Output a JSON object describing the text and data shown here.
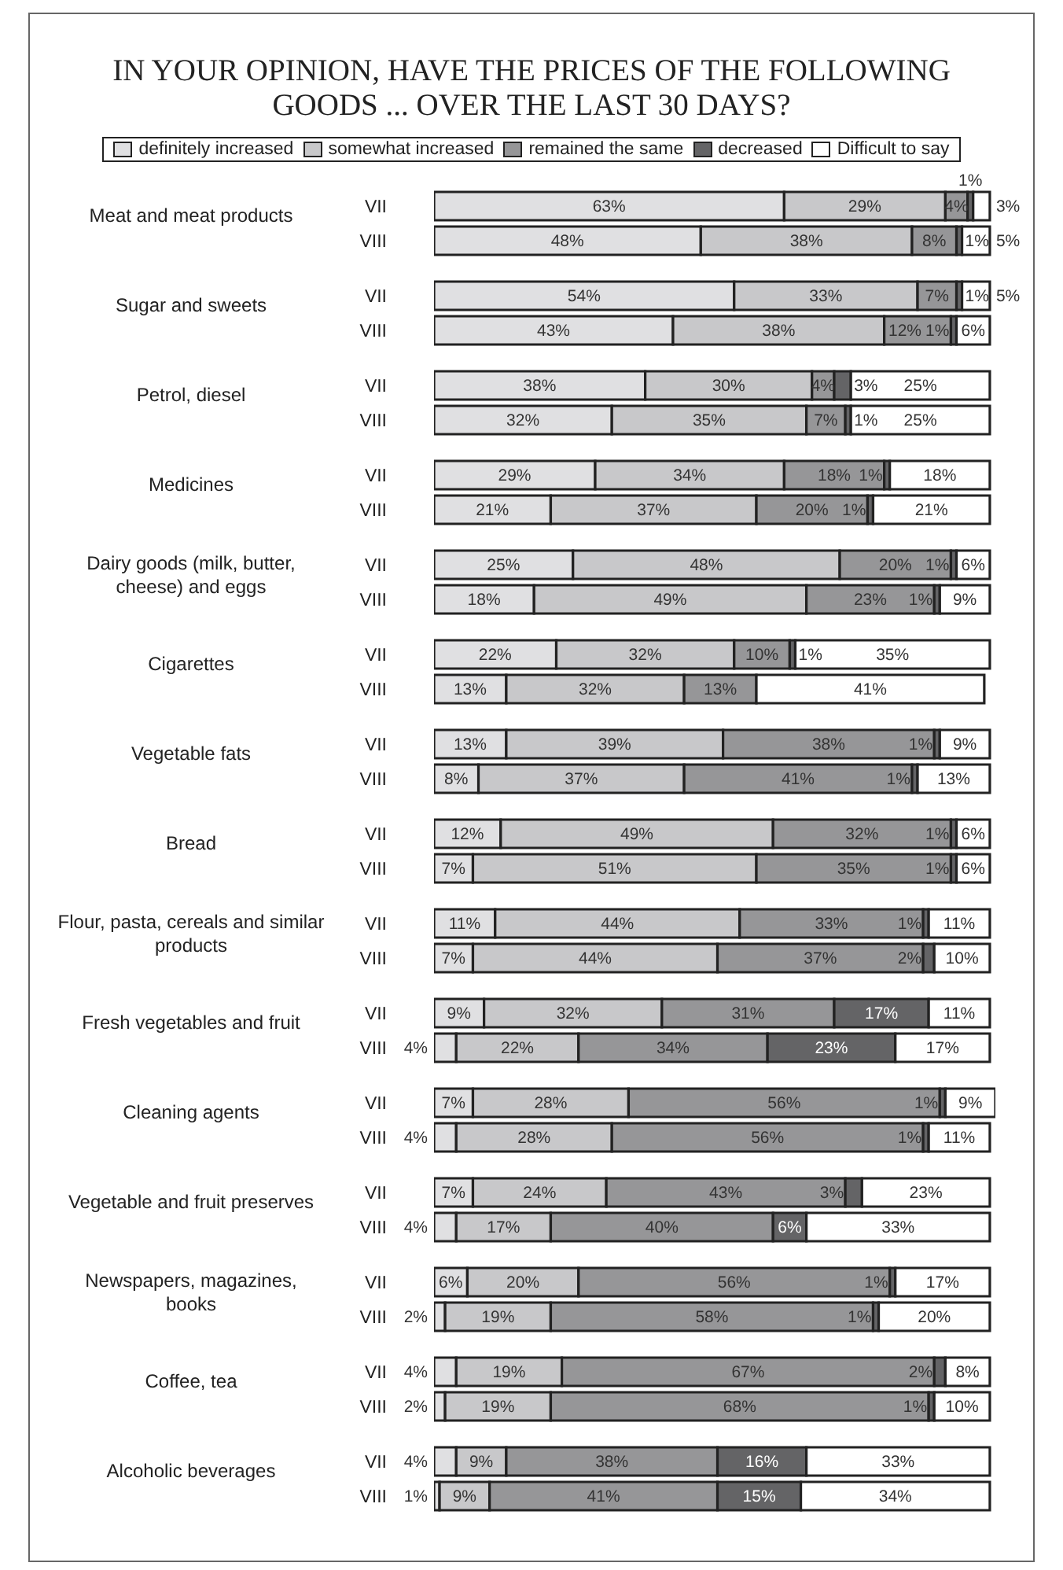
{
  "chart_data": [
    {
      "type": "bar",
      "orientation": "horizontal",
      "stacked": true,
      "title": "IN YOUR OPINION, HAVE THE PRICES OF THE FOLLOWING GOODS ... OVER THE LAST 30 DAYS?",
      "legend": "top",
      "ylabel": "Meat and meat products",
      "categories": [
        "VII",
        "VIII"
      ],
      "series": [
        {
          "name": "definitely increased",
          "color": "#e0e0e2",
          "values": [
            63,
            48
          ],
          "value_labels": [
            "63%",
            "48%"
          ]
        },
        {
          "name": "somewhat increased",
          "color": "#c8c8ca",
          "values": [
            29,
            38
          ],
          "value_labels": [
            "29%",
            "38%"
          ]
        },
        {
          "name": "remained the same",
          "color": "#969698",
          "values": [
            4,
            8
          ],
          "value_labels": [
            "4%",
            "8%"
          ]
        },
        {
          "name": "decreased",
          "color": "#646466",
          "values": [
            1,
            1
          ],
          "value_labels": [
            "1%",
            "1%"
          ]
        },
        {
          "name": "Difficult to say",
          "color": "#ffffff",
          "values": [
            3,
            5
          ],
          "value_labels": [
            "3%",
            "5%"
          ]
        }
      ]
    },
    {
      "type": "bar",
      "orientation": "horizontal",
      "stacked": true,
      "ylabel": "Sugar and sweets",
      "categories": [
        "VII",
        "VIII"
      ],
      "series": [
        {
          "color": "#e0e0e2",
          "values": [
            54,
            43
          ],
          "value_labels": [
            "54%",
            "43%"
          ]
        },
        {
          "color": "#c8c8ca",
          "values": [
            33,
            38
          ],
          "value_labels": [
            "33%",
            "38%"
          ]
        },
        {
          "color": "#969698",
          "values": [
            7,
            12
          ],
          "value_labels": [
            "7%",
            "12%"
          ]
        },
        {
          "color": "#646466",
          "values": [
            1,
            1
          ],
          "value_labels": [
            "1%",
            "1%"
          ]
        },
        {
          "color": "#ffffff",
          "values": [
            5,
            6
          ],
          "value_labels": [
            "5%",
            "6%"
          ]
        }
      ]
    },
    {
      "type": "bar",
      "orientation": "horizontal",
      "stacked": true,
      "ylabel": "Petrol, diesel",
      "categories": [
        "VII",
        "VIII"
      ],
      "series": [
        {
          "color": "#e0e0e2",
          "values": [
            38,
            32
          ],
          "value_labels": [
            "38%",
            "32%"
          ]
        },
        {
          "color": "#c8c8ca",
          "values": [
            30,
            35
          ],
          "value_labels": [
            "30%",
            "35%"
          ]
        },
        {
          "color": "#969698",
          "values": [
            4,
            7
          ],
          "value_labels": [
            "4%",
            "7%"
          ]
        },
        {
          "color": "#646466",
          "values": [
            3,
            1
          ],
          "value_labels": [
            "3%",
            "1%"
          ]
        },
        {
          "color": "#ffffff",
          "values": [
            25,
            25
          ],
          "value_labels": [
            "25%",
            "25%"
          ]
        }
      ]
    },
    {
      "type": "bar",
      "orientation": "horizontal",
      "stacked": true,
      "ylabel": "Medicines",
      "categories": [
        "VII",
        "VIII"
      ],
      "series": [
        {
          "color": "#e0e0e2",
          "values": [
            29,
            21
          ],
          "value_labels": [
            "29%",
            "21%"
          ]
        },
        {
          "color": "#c8c8ca",
          "values": [
            34,
            37
          ],
          "value_labels": [
            "34%",
            "37%"
          ]
        },
        {
          "color": "#969698",
          "values": [
            18,
            20
          ],
          "value_labels": [
            "18%",
            "20%"
          ]
        },
        {
          "color": "#646466",
          "values": [
            1,
            1
          ],
          "value_labels": [
            "1%",
            "1%"
          ]
        },
        {
          "color": "#ffffff",
          "values": [
            18,
            21
          ],
          "value_labels": [
            "18%",
            "21%"
          ]
        }
      ]
    },
    {
      "type": "bar",
      "orientation": "horizontal",
      "stacked": true,
      "ylabel": "Dairy goods (milk, butter, cheese) and eggs",
      "categories": [
        "VII",
        "VIII"
      ],
      "series": [
        {
          "color": "#e0e0e2",
          "values": [
            25,
            18
          ],
          "value_labels": [
            "25%",
            "18%"
          ]
        },
        {
          "color": "#c8c8ca",
          "values": [
            48,
            49
          ],
          "value_labels": [
            "48%",
            "49%"
          ]
        },
        {
          "color": "#969698",
          "values": [
            20,
            23
          ],
          "value_labels": [
            "20%",
            "23%"
          ]
        },
        {
          "color": "#646466",
          "values": [
            1,
            1
          ],
          "value_labels": [
            "1%",
            "1%"
          ]
        },
        {
          "color": "#ffffff",
          "values": [
            6,
            9
          ],
          "value_labels": [
            "6%",
            "9%"
          ]
        }
      ]
    },
    {
      "type": "bar",
      "orientation": "horizontal",
      "stacked": true,
      "ylabel": "Cigarettes",
      "categories": [
        "VII",
        "VIII"
      ],
      "series": [
        {
          "color": "#e0e0e2",
          "values": [
            22,
            13
          ],
          "value_labels": [
            "22%",
            "13%"
          ]
        },
        {
          "color": "#c8c8ca",
          "values": [
            32,
            32
          ],
          "value_labels": [
            "32%",
            "32%"
          ]
        },
        {
          "color": "#969698",
          "values": [
            10,
            13
          ],
          "value_labels": [
            "10%",
            "13%"
          ]
        },
        {
          "color": "#646466",
          "values": [
            1,
            null
          ],
          "value_labels": [
            "1%",
            null
          ]
        },
        {
          "color": "#ffffff",
          "values": [
            35,
            41
          ],
          "value_labels": [
            "35%",
            "41%"
          ]
        }
      ]
    },
    {
      "type": "bar",
      "orientation": "horizontal",
      "stacked": true,
      "ylabel": "Vegetable fats",
      "categories": [
        "VII",
        "VIII"
      ],
      "series": [
        {
          "color": "#e0e0e2",
          "values": [
            13,
            8
          ],
          "value_labels": [
            "13%",
            "8%"
          ]
        },
        {
          "color": "#c8c8ca",
          "values": [
            39,
            37
          ],
          "value_labels": [
            "39%",
            "37%"
          ]
        },
        {
          "color": "#969698",
          "values": [
            38,
            41
          ],
          "value_labels": [
            "38%",
            "41%"
          ]
        },
        {
          "color": "#646466",
          "values": [
            1,
            1
          ],
          "value_labels": [
            "1%",
            "1%"
          ]
        },
        {
          "color": "#ffffff",
          "values": [
            9,
            13
          ],
          "value_labels": [
            "9%",
            "13%"
          ]
        }
      ]
    },
    {
      "type": "bar",
      "orientation": "horizontal",
      "stacked": true,
      "ylabel": "Bread",
      "categories": [
        "VII",
        "VIII"
      ],
      "series": [
        {
          "color": "#e0e0e2",
          "values": [
            12,
            7
          ],
          "value_labels": [
            "12%",
            "7%"
          ]
        },
        {
          "color": "#c8c8ca",
          "values": [
            49,
            51
          ],
          "value_labels": [
            "49%",
            "51%"
          ]
        },
        {
          "color": "#969698",
          "values": [
            32,
            35
          ],
          "value_labels": [
            "32%",
            "35%"
          ]
        },
        {
          "color": "#646466",
          "values": [
            1,
            1
          ],
          "value_labels": [
            "1%",
            "1%"
          ]
        },
        {
          "color": "#ffffff",
          "values": [
            6,
            6
          ],
          "value_labels": [
            "6%",
            "6%"
          ]
        }
      ]
    },
    {
      "type": "bar",
      "orientation": "horizontal",
      "stacked": true,
      "ylabel": "Flour, pasta, cereals and similar products",
      "categories": [
        "VII",
        "VIII"
      ],
      "series": [
        {
          "color": "#e0e0e2",
          "values": [
            11,
            7
          ],
          "value_labels": [
            "11%",
            "7%"
          ]
        },
        {
          "color": "#c8c8ca",
          "values": [
            44,
            44
          ],
          "value_labels": [
            "44%",
            "44%"
          ]
        },
        {
          "color": "#969698",
          "values": [
            33,
            37
          ],
          "value_labels": [
            "33%",
            "37%"
          ]
        },
        {
          "color": "#646466",
          "values": [
            1,
            2
          ],
          "value_labels": [
            "1%",
            "2%"
          ]
        },
        {
          "color": "#ffffff",
          "values": [
            11,
            10
          ],
          "value_labels": [
            "11%",
            "10%"
          ]
        }
      ]
    },
    {
      "type": "bar",
      "orientation": "horizontal",
      "stacked": true,
      "ylabel": "Fresh vegetables and fruit",
      "categories": [
        "VII",
        "VIII"
      ],
      "series": [
        {
          "color": "#e0e0e2",
          "values": [
            9,
            4
          ],
          "value_labels": [
            "9%",
            "4%"
          ]
        },
        {
          "color": "#c8c8ca",
          "values": [
            32,
            22
          ],
          "value_labels": [
            "32%",
            "22%"
          ]
        },
        {
          "color": "#969698",
          "values": [
            31,
            34
          ],
          "value_labels": [
            "31%",
            "34%"
          ]
        },
        {
          "color": "#646466",
          "values": [
            17,
            23
          ],
          "value_labels": [
            "17%",
            "23%"
          ]
        },
        {
          "color": "#ffffff",
          "values": [
            11,
            17
          ],
          "value_labels": [
            "11%",
            "17%"
          ]
        }
      ]
    },
    {
      "type": "bar",
      "orientation": "horizontal",
      "stacked": true,
      "ylabel": "Cleaning agents",
      "categories": [
        "VII",
        "VIII"
      ],
      "series": [
        {
          "color": "#e0e0e2",
          "values": [
            7,
            4
          ],
          "value_labels": [
            "7%",
            "4%"
          ]
        },
        {
          "color": "#c8c8ca",
          "values": [
            28,
            28
          ],
          "value_labels": [
            "28%",
            "28%"
          ]
        },
        {
          "color": "#969698",
          "values": [
            56,
            56
          ],
          "value_labels": [
            "56%",
            "56%"
          ]
        },
        {
          "color": "#646466",
          "values": [
            1,
            1
          ],
          "value_labels": [
            "1%",
            "1%"
          ]
        },
        {
          "color": "#ffffff",
          "values": [
            9,
            11
          ],
          "value_labels": [
            "9%",
            "11%"
          ]
        }
      ]
    },
    {
      "type": "bar",
      "orientation": "horizontal",
      "stacked": true,
      "ylabel": "Vegetable and fruit preserves",
      "categories": [
        "VII",
        "VIII"
      ],
      "series": [
        {
          "color": "#e0e0e2",
          "values": [
            7,
            4
          ],
          "value_labels": [
            "7%",
            "4%"
          ]
        },
        {
          "color": "#c8c8ca",
          "values": [
            24,
            17
          ],
          "value_labels": [
            "24%",
            "17%"
          ]
        },
        {
          "color": "#969698",
          "values": [
            43,
            40
          ],
          "value_labels": [
            "43%",
            "40%"
          ]
        },
        {
          "color": "#646466",
          "values": [
            3,
            6
          ],
          "value_labels": [
            "3%",
            "6%"
          ]
        },
        {
          "color": "#ffffff",
          "values": [
            23,
            33
          ],
          "value_labels": [
            "23%",
            "33%"
          ]
        }
      ]
    },
    {
      "type": "bar",
      "orientation": "horizontal",
      "stacked": true,
      "ylabel": "Newspapers, magazines, books",
      "categories": [
        "VII",
        "VIII"
      ],
      "series": [
        {
          "color": "#e0e0e2",
          "values": [
            6,
            2
          ],
          "value_labels": [
            "6%",
            "2%"
          ]
        },
        {
          "color": "#c8c8ca",
          "values": [
            20,
            19
          ],
          "value_labels": [
            "20%",
            "19%"
          ]
        },
        {
          "color": "#969698",
          "values": [
            56,
            58
          ],
          "value_labels": [
            "56%",
            "58%"
          ]
        },
        {
          "color": "#646466",
          "values": [
            1,
            1
          ],
          "value_labels": [
            "1%",
            "1%"
          ]
        },
        {
          "color": "#ffffff",
          "values": [
            17,
            20
          ],
          "value_labels": [
            "17%",
            "20%"
          ]
        }
      ]
    },
    {
      "type": "bar",
      "orientation": "horizontal",
      "stacked": true,
      "ylabel": "Coffee, tea",
      "categories": [
        "VII",
        "VIII"
      ],
      "series": [
        {
          "color": "#e0e0e2",
          "values": [
            4,
            2
          ],
          "value_labels": [
            "4%",
            "2%"
          ]
        },
        {
          "color": "#c8c8ca",
          "values": [
            19,
            19
          ],
          "value_labels": [
            "19%",
            "19%"
          ]
        },
        {
          "color": "#969698",
          "values": [
            67,
            68
          ],
          "value_labels": [
            "67%",
            "68%"
          ]
        },
        {
          "color": "#646466",
          "values": [
            2,
            1
          ],
          "value_labels": [
            "2%",
            "1%"
          ]
        },
        {
          "color": "#ffffff",
          "values": [
            8,
            10
          ],
          "value_labels": [
            "8%",
            "10%"
          ]
        }
      ]
    },
    {
      "type": "bar",
      "orientation": "horizontal",
      "stacked": true,
      "ylabel": "Alcoholic beverages",
      "categories": [
        "VII",
        "VIII"
      ],
      "series": [
        {
          "color": "#e0e0e2",
          "values": [
            4,
            1
          ],
          "value_labels": [
            "4%",
            "1%"
          ]
        },
        {
          "color": "#c8c8ca",
          "values": [
            9,
            9
          ],
          "value_labels": [
            "9%",
            "9%"
          ]
        },
        {
          "color": "#969698",
          "values": [
            38,
            41
          ],
          "value_labels": [
            "38%",
            "41%"
          ]
        },
        {
          "color": "#646466",
          "values": [
            16,
            15
          ],
          "value_labels": [
            "16%",
            "15%"
          ]
        },
        {
          "color": "#ffffff",
          "values": [
            33,
            34
          ],
          "value_labels": [
            "33%",
            "34%"
          ]
        }
      ]
    }
  ]
}
